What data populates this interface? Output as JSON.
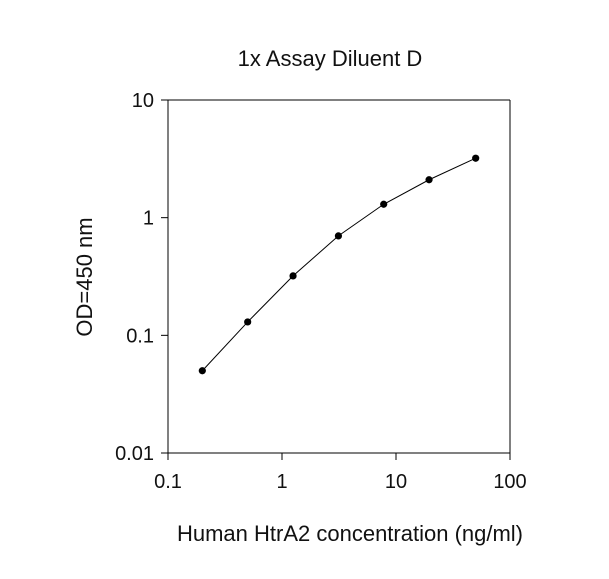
{
  "chart_data": {
    "type": "line",
    "title": "1x Assay Diluent D",
    "xlabel": "Human HtrA2 concentration (ng/ml)",
    "ylabel": "OD=450 nm",
    "xscale": "log",
    "yscale": "log",
    "xlim": [
      0.1,
      100
    ],
    "ylim": [
      0.01,
      10
    ],
    "xticks": [
      "0.1",
      "1",
      "10",
      "100"
    ],
    "yticks": [
      "0.01",
      "0.1",
      "1",
      "10"
    ],
    "grid": false,
    "legend": "none",
    "series": [
      {
        "x": [
          0.2,
          0.5,
          1.25,
          3.125,
          7.8,
          19.5,
          50
        ],
        "y": [
          0.05,
          0.13,
          0.32,
          0.7,
          1.3,
          2.1,
          3.2
        ]
      }
    ],
    "colors": {
      "line": "#000000",
      "marker": "#000000",
      "axis": "#000000"
    }
  }
}
